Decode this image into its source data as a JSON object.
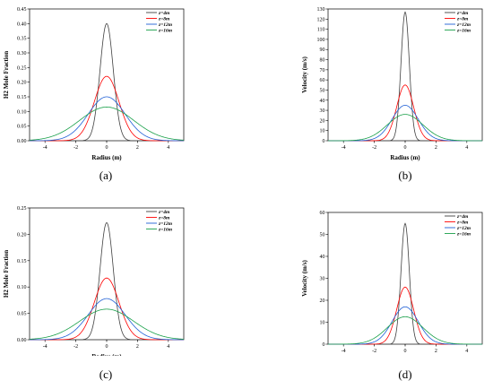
{
  "chart_data": [
    {
      "type": "line",
      "panel": "a",
      "caption": "(a)",
      "xlabel": "Radius (m)",
      "ylabel": "H2 Mole Fraction",
      "xlim": [
        -5,
        5
      ],
      "ylim": [
        0,
        0.45
      ],
      "xticks": [
        -4,
        -2,
        0,
        2,
        4
      ],
      "yticks": [
        0.0,
        0.05,
        0.1,
        0.15,
        0.2,
        0.25,
        0.3,
        0.35,
        0.4,
        0.45
      ],
      "tick_decimals": 2,
      "legend_position": "top-right",
      "grid": false,
      "series": [
        {
          "name": "z=4m",
          "color": "#404040",
          "peak": 0.4,
          "sigma": 0.43
        },
        {
          "name": "z=8m",
          "color": "#ff0000",
          "peak": 0.22,
          "sigma": 0.8
        },
        {
          "name": "z=12m",
          "color": "#1f5fd6",
          "peak": 0.15,
          "sigma": 1.2
        },
        {
          "name": "z=16m",
          "color": "#1aa04a",
          "peak": 0.115,
          "sigma": 1.75
        }
      ]
    },
    {
      "type": "line",
      "panel": "b",
      "caption": "(b)",
      "xlabel": "Radius (m)",
      "ylabel": "Velocity (m/s)",
      "xlim": [
        -5,
        5
      ],
      "ylim": [
        0,
        130
      ],
      "xticks": [
        -4,
        -2,
        0,
        2,
        4
      ],
      "yticks": [
        0,
        10,
        20,
        30,
        40,
        50,
        60,
        70,
        80,
        90,
        100,
        110,
        120,
        130
      ],
      "tick_decimals": 0,
      "legend_position": "top-right",
      "grid": false,
      "series": [
        {
          "name": "z=4m",
          "color": "#404040",
          "peak": 127,
          "sigma": 0.27
        },
        {
          "name": "z=8m",
          "color": "#ff0000",
          "peak": 55,
          "sigma": 0.55
        },
        {
          "name": "z=12m",
          "color": "#1f5fd6",
          "peak": 35,
          "sigma": 0.85
        },
        {
          "name": "z=16m",
          "color": "#1aa04a",
          "peak": 26,
          "sigma": 1.15
        }
      ]
    },
    {
      "type": "line",
      "panel": "c",
      "caption": "(c)",
      "xlabel": "Radius (m)",
      "ylabel": "H2 Mole Fraction",
      "xlim": [
        -5,
        5
      ],
      "ylim": [
        0,
        0.25
      ],
      "xticks": [
        -4,
        -2,
        0,
        2,
        4
      ],
      "yticks": [
        0.0,
        0.05,
        0.1,
        0.15,
        0.2,
        0.25
      ],
      "tick_decimals": 2,
      "legend_position": "top-right",
      "grid": false,
      "series": [
        {
          "name": "z=4m",
          "color": "#404040",
          "peak": 0.222,
          "sigma": 0.43
        },
        {
          "name": "z=8m",
          "color": "#ff0000",
          "peak": 0.117,
          "sigma": 0.8
        },
        {
          "name": "z=12m",
          "color": "#1f5fd6",
          "peak": 0.078,
          "sigma": 1.2
        },
        {
          "name": "z=16m",
          "color": "#1aa04a",
          "peak": 0.058,
          "sigma": 1.75
        }
      ]
    },
    {
      "type": "line",
      "panel": "d",
      "caption": "(d)",
      "xlabel": "Radius (m)",
      "ylabel": "Velocity (m/s)",
      "xlim": [
        -5,
        5
      ],
      "ylim": [
        0,
        60
      ],
      "xticks": [
        -4,
        -2,
        0,
        2,
        4
      ],
      "yticks": [
        0,
        10,
        20,
        30,
        40,
        50,
        60
      ],
      "tick_decimals": 0,
      "legend_position": "top-right",
      "grid": false,
      "series": [
        {
          "name": "z=4m",
          "color": "#404040",
          "peak": 55,
          "sigma": 0.27
        },
        {
          "name": "z=8m",
          "color": "#ff0000",
          "peak": 26,
          "sigma": 0.55
        },
        {
          "name": "z=12m",
          "color": "#1f5fd6",
          "peak": 17,
          "sigma": 0.85
        },
        {
          "name": "z=16m",
          "color": "#1aa04a",
          "peak": 12.5,
          "sigma": 1.15
        }
      ]
    }
  ]
}
